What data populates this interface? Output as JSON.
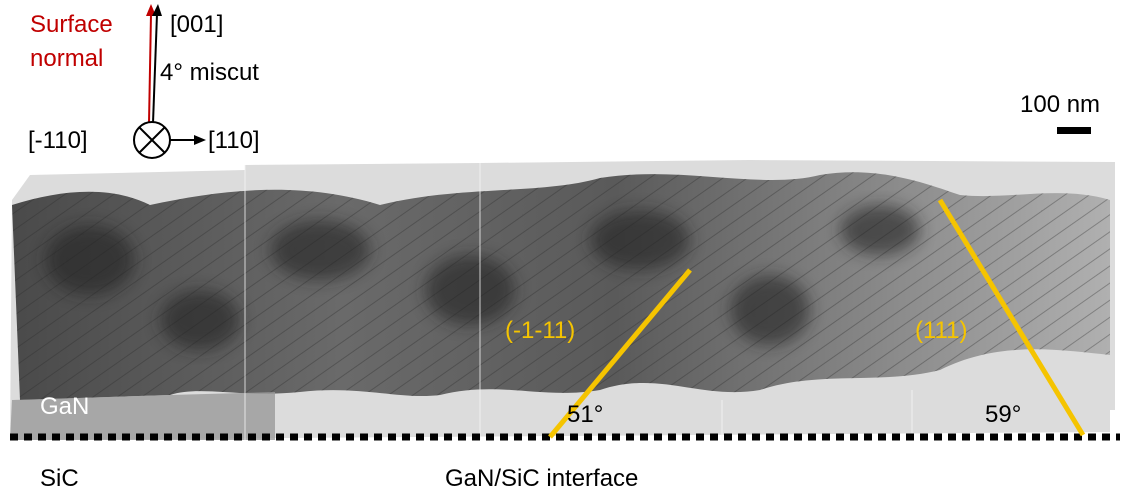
{
  "orientation": {
    "surface_normal": [
      "Surface",
      "normal"
    ],
    "axis_001": "[001]",
    "miscut": "4° miscut",
    "axis_m110": "[-110]",
    "axis_110": "[110]"
  },
  "scale_bar": "100 nm",
  "planes": [
    {
      "label": "(-1-11)",
      "angle": "51°"
    },
    {
      "label": "(111)",
      "angle": "59°"
    }
  ],
  "layers": {
    "film": "GaN",
    "substrate": "SiC",
    "interface": "GaN/SiC interface"
  }
}
